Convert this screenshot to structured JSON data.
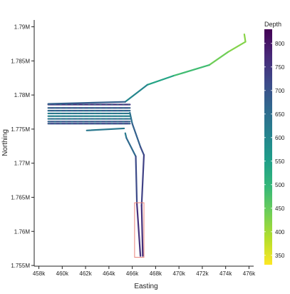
{
  "chart_data": {
    "type": "line",
    "title": "",
    "xlabel": "Easting",
    "ylabel": "Northing",
    "xlim": [
      457600,
      476400
    ],
    "ylim": [
      1754900,
      1791000
    ],
    "x_ticks": [
      {
        "value": 458000,
        "label": "458k"
      },
      {
        "value": 460000,
        "label": "460k"
      },
      {
        "value": 462000,
        "label": "462k"
      },
      {
        "value": 464000,
        "label": "464k"
      },
      {
        "value": 466000,
        "label": "466k"
      },
      {
        "value": 468000,
        "label": "468k"
      },
      {
        "value": 470000,
        "label": "470k"
      },
      {
        "value": 472000,
        "label": "472k"
      },
      {
        "value": 474000,
        "label": "474k"
      },
      {
        "value": 476000,
        "label": "476k"
      }
    ],
    "y_ticks": [
      {
        "value": 1755000,
        "label": "1.755M"
      },
      {
        "value": 1760000,
        "label": "1.76M"
      },
      {
        "value": 1765000,
        "label": "1.765M"
      },
      {
        "value": 1770000,
        "label": "1.77M"
      },
      {
        "value": 1775000,
        "label": "1.775M"
      },
      {
        "value": 1780000,
        "label": "1.78M"
      },
      {
        "value": 1785000,
        "label": "1.785M"
      },
      {
        "value": 1790000,
        "label": "1.79M"
      }
    ],
    "grid": false,
    "legend": {
      "title": "Depth",
      "position": "right",
      "min": 330,
      "max": 830,
      "ticks": [
        350,
        400,
        450,
        500,
        550,
        600,
        650,
        700,
        750,
        800
      ],
      "colors": [
        "#fde725",
        "#b5de2b",
        "#6ece58",
        "#35b779",
        "#1f9e89",
        "#26828e",
        "#31688e",
        "#3e4989",
        "#482878",
        "#440154"
      ]
    },
    "track_color": "#3f4a8a",
    "series": [
      {
        "points": [
          {
            "x": 475600,
            "y": 1788900,
            "depth": 420
          },
          {
            "x": 475700,
            "y": 1787800,
            "depth": 420
          },
          {
            "x": 474200,
            "y": 1786300,
            "depth": 430
          },
          {
            "x": 472600,
            "y": 1784400,
            "depth": 450
          },
          {
            "x": 469500,
            "y": 1782800,
            "depth": 520
          },
          {
            "x": 467300,
            "y": 1781500,
            "depth": 560
          },
          {
            "x": 465400,
            "y": 1779000,
            "depth": 640
          },
          {
            "x": 458800,
            "y": 1778700,
            "depth": 720
          }
        ]
      },
      {
        "points": [
          {
            "x": 465800,
            "y": 1777400,
            "depth": 640
          },
          {
            "x": 466000,
            "y": 1775800,
            "depth": 650
          },
          {
            "x": 466700,
            "y": 1772400,
            "depth": 700
          },
          {
            "x": 467000,
            "y": 1771200,
            "depth": 720
          },
          {
            "x": 466800,
            "y": 1763800,
            "depth": 740
          },
          {
            "x": 466900,
            "y": 1756400,
            "depth": 780
          }
        ]
      },
      {
        "points": [
          {
            "x": 465400,
            "y": 1774400,
            "depth": 620
          },
          {
            "x": 465500,
            "y": 1773700,
            "depth": 630
          },
          {
            "x": 466300,
            "y": 1771000,
            "depth": 690
          },
          {
            "x": 466400,
            "y": 1764000,
            "depth": 740
          },
          {
            "x": 466700,
            "y": 1756400,
            "depth": 780
          }
        ]
      },
      {
        "points": [
          {
            "x": 462100,
            "y": 1774800,
            "depth": 660
          },
          {
            "x": 465300,
            "y": 1775100,
            "depth": 600
          }
        ]
      }
    ],
    "survey_lines": {
      "x_start": 458800,
      "x_end": 465800,
      "y_values": [
        1778600,
        1778100,
        1777700,
        1777300,
        1776900,
        1776500,
        1776100,
        1775800
      ],
      "depths": [
        760,
        700,
        680,
        640,
        620,
        660,
        700,
        720
      ]
    },
    "highlight_box": {
      "x": [
        466200,
        467000
      ],
      "y": [
        1756200,
        1764200
      ],
      "color": "#e8817a"
    }
  }
}
